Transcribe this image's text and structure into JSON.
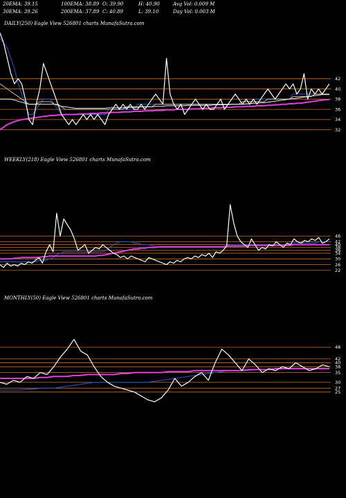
{
  "header": {
    "ema20": "20EMA: 39.15",
    "ema100": "100EMA: 38.89",
    "open": "O: 39.90",
    "high": "H: 40.90",
    "avgvol": "Avg Vol: 0.009 M",
    "ema30": "30EMA: 39.26",
    "ema200": "200EMA: 37.89",
    "close": "C: 40.89",
    "low": "L: 39.10",
    "dayvol": "Day Vol: 0.003 M"
  },
  "colors": {
    "background": "#000000",
    "price": "#ffffff",
    "gridline": "#c87533",
    "ema_blue": "#1e5bd8",
    "ema_magenta": "#e040e0",
    "ema_tan": "#d8b890",
    "ema_white": "#f0f0f0"
  },
  "chart_data": [
    {
      "type": "line",
      "title": "DAILY(250) Eagle   View  526801 charts MunafaSutra.com",
      "yticks": [
        42,
        40,
        38,
        36,
        34,
        32
      ],
      "ylim": [
        31,
        52
      ],
      "series": [
        {
          "name": "price",
          "color": "#ffffff",
          "values": [
            51,
            49,
            46,
            43,
            41,
            42,
            41,
            38,
            34,
            33,
            37,
            40,
            45,
            43,
            41,
            39,
            37,
            35,
            34,
            33,
            34,
            33,
            34,
            35,
            34,
            35,
            34,
            35,
            34,
            33,
            35,
            36,
            37,
            36,
            37,
            36,
            37,
            36,
            36,
            37,
            36,
            37,
            38,
            39,
            38,
            37,
            46,
            39,
            37,
            36,
            37,
            35,
            36,
            37,
            38,
            37,
            36,
            37,
            36,
            36,
            37,
            38,
            36,
            37,
            38,
            39,
            38,
            37,
            38,
            37,
            38,
            37,
            38,
            39,
            40,
            39,
            38,
            39,
            40,
            41,
            40,
            41,
            39,
            40,
            43,
            38,
            40,
            39,
            40,
            39,
            40,
            41
          ]
        },
        {
          "name": "EMA20",
          "color": "#1e5bd8",
          "values": [
            50,
            49,
            48,
            46,
            44,
            41,
            39,
            37,
            35,
            35,
            36,
            37,
            38,
            38,
            38,
            37,
            36,
            35,
            35,
            35,
            35,
            35,
            35,
            35,
            35,
            35,
            35,
            35,
            35,
            35,
            36,
            36,
            36,
            36,
            36,
            36,
            36,
            36,
            37,
            37,
            37,
            37,
            37,
            37,
            37,
            37,
            37,
            37,
            37,
            37,
            37,
            37,
            37,
            37,
            37,
            37,
            37,
            37,
            37,
            37,
            37,
            37,
            37,
            37,
            37,
            37,
            37,
            37,
            37,
            37,
            38,
            38,
            38,
            38,
            38,
            38,
            38,
            38,
            38,
            38,
            38,
            39,
            39,
            39,
            39,
            39,
            39,
            39,
            39,
            39,
            39,
            39
          ]
        },
        {
          "name": "EMA30",
          "color": "#d8b890",
          "values": [
            41,
            40.5,
            40,
            39.5,
            39,
            38.5,
            38,
            37.5,
            37,
            37,
            37,
            37.5,
            37.5,
            37.5,
            37.5,
            37,
            37,
            36.5,
            36,
            36,
            36,
            36,
            36,
            36,
            36,
            36,
            36,
            36,
            36,
            36,
            36,
            36,
            36,
            36,
            36,
            36.5,
            36.5,
            36.5,
            36.5,
            36.5,
            36.5,
            36.5,
            36.5,
            37,
            37,
            37,
            37,
            37,
            37,
            37,
            37,
            37,
            37,
            37,
            37,
            37,
            37,
            37,
            37,
            37,
            37,
            37,
            37,
            37,
            37,
            37,
            37,
            37.5,
            37.5,
            37.5,
            37.5,
            37.5,
            37.5,
            37.5,
            38,
            38,
            38,
            38,
            38,
            38,
            38,
            38.5,
            38.5,
            38.5,
            38.5,
            38.5,
            38.5,
            39,
            39,
            39,
            39,
            39
          ]
        },
        {
          "name": "EMA100",
          "color": "#f0f0f0",
          "values": [
            38,
            38,
            38,
            38,
            37.8,
            37.6,
            37.4,
            37.2,
            37,
            37,
            37,
            37,
            37,
            37,
            37,
            37,
            36.8,
            36.6,
            36.5,
            36.4,
            36.3,
            36.2,
            36.2,
            36.2,
            36.2,
            36.2,
            36.2,
            36.2,
            36.2,
            36.2,
            36.3,
            36.3,
            36.3,
            36.3,
            36.3,
            36.4,
            36.4,
            36.4,
            36.4,
            36.5,
            36.5,
            36.5,
            36.5,
            36.6,
            36.6,
            36.6,
            36.7,
            36.7,
            36.7,
            36.7,
            36.7,
            36.7,
            36.8,
            36.8,
            36.8,
            36.8,
            36.8,
            36.8,
            36.8,
            36.9,
            36.9,
            36.9,
            36.9,
            36.9,
            37,
            37,
            37,
            37,
            37.1,
            37.1,
            37.2,
            37.2,
            37.3,
            37.3,
            37.4,
            37.5,
            37.6,
            37.7,
            37.8,
            37.9,
            38,
            38.1,
            38.2,
            38.3,
            38.4,
            38.5,
            38.6,
            38.7,
            38.8,
            38.9,
            38.9,
            38.9
          ]
        },
        {
          "name": "EMA200",
          "color": "#e040e0",
          "values": [
            32,
            32.5,
            33,
            33.3,
            33.6,
            33.8,
            34,
            34.1,
            34.2,
            34.3,
            34.4,
            34.5,
            34.6,
            34.7,
            34.8,
            34.8,
            34.9,
            34.9,
            35,
            35,
            35,
            35,
            35.1,
            35.1,
            35.1,
            35.2,
            35.2,
            35.2,
            35.3,
            35.3,
            35.3,
            35.4,
            35.4,
            35.4,
            35.5,
            35.5,
            35.5,
            35.6,
            35.6,
            35.6,
            35.7,
            35.7,
            35.7,
            35.8,
            35.8,
            35.8,
            35.9,
            35.9,
            35.9,
            36,
            36,
            36,
            36,
            36.1,
            36.1,
            36.1,
            36.2,
            36.2,
            36.2,
            36.3,
            36.3,
            36.3,
            36.4,
            36.4,
            36.4,
            36.5,
            36.5,
            36.5,
            36.6,
            36.6,
            36.6,
            36.7,
            36.7,
            36.7,
            36.8,
            36.8,
            36.9,
            36.9,
            37,
            37,
            37.1,
            37.1,
            37.2,
            37.2,
            37.3,
            37.4,
            37.5,
            37.6,
            37.7,
            37.8,
            37.9,
            37.9
          ]
        }
      ]
    },
    {
      "type": "line",
      "title": "WEEKLY(218) Eagle   View  526801 charts MunafaSutra.com",
      "yticks": [
        46,
        42,
        40,
        38,
        36,
        34,
        30,
        26,
        22
      ],
      "ylim": [
        20,
        95
      ],
      "series": [
        {
          "name": "price",
          "color": "#ffffff",
          "values": [
            26,
            24,
            27,
            25,
            26,
            25,
            27,
            26,
            28,
            27,
            29,
            31,
            27,
            35,
            40,
            35,
            62,
            46,
            58,
            54,
            50,
            44,
            36,
            38,
            40,
            34,
            36,
            38,
            37,
            40,
            38,
            36,
            34,
            33,
            31,
            32,
            30,
            32,
            31,
            30,
            29,
            28,
            31,
            30,
            29,
            28,
            27,
            26,
            28,
            27,
            29,
            28,
            30,
            31,
            30,
            32,
            31,
            33,
            32,
            34,
            31,
            35,
            34,
            36,
            39,
            68,
            55,
            46,
            42,
            40,
            38,
            44,
            40,
            36,
            38,
            37,
            40,
            39,
            42,
            40,
            38,
            41,
            40,
            44,
            42,
            41,
            43,
            42,
            44,
            43,
            45,
            41,
            42,
            44
          ]
        },
        {
          "name": "EMA20",
          "color": "#1e5bd8",
          "values": [
            28,
            28,
            28,
            28,
            28,
            28,
            28,
            28,
            28,
            28,
            28,
            29,
            29,
            29,
            30,
            31,
            33,
            34,
            35,
            35,
            35,
            35,
            35,
            35,
            35,
            35,
            35,
            35,
            35,
            35,
            36,
            38,
            40,
            41,
            42,
            42,
            42,
            42,
            41,
            41,
            40,
            40,
            40,
            39,
            39,
            38,
            38,
            38,
            38,
            38,
            38,
            38,
            38,
            38,
            38,
            38,
            38,
            38,
            38,
            38,
            38,
            38,
            38,
            38,
            39,
            40,
            40,
            40,
            40,
            40,
            40,
            40,
            40,
            40,
            40,
            40,
            40,
            40,
            40,
            40,
            40,
            40,
            40,
            41,
            41,
            41,
            41,
            41,
            41,
            41,
            42,
            42,
            42,
            42
          ]
        },
        {
          "name": "EMA200",
          "color": "#e040e0",
          "values": [
            30,
            30,
            30,
            30,
            30.5,
            30.5,
            31,
            31,
            31,
            31,
            31,
            31,
            31.5,
            31.5,
            32,
            32,
            32,
            32,
            32,
            32,
            32,
            32,
            32,
            32,
            32,
            32,
            32,
            32,
            32.5,
            32.5,
            33,
            33.5,
            34,
            34.5,
            35,
            35.5,
            36,
            36.5,
            37,
            37,
            37.5,
            37.5,
            38,
            38,
            38,
            38.5,
            38.5,
            38.5,
            38.5,
            38.5,
            38.5,
            38.5,
            38.5,
            38.5,
            38.5,
            38.5,
            38.5,
            38.5,
            38.5,
            38.5,
            38.5,
            38.5,
            38.5,
            38.5,
            39,
            39,
            39,
            39,
            39,
            39,
            39.5,
            39.5,
            39.5,
            39.5,
            39.5,
            39.5,
            39.5,
            39.5,
            39.5,
            39.5,
            39.5,
            39.5,
            39.5,
            40,
            40,
            40,
            40,
            40,
            40,
            40,
            40,
            40,
            40,
            40
          ]
        }
      ]
    },
    {
      "type": "line",
      "title": "MONTHLY(50) Eagle   View  526801 charts MunafaSutra.com",
      "yticks": [
        48,
        42,
        40,
        38,
        35,
        30,
        27,
        25
      ],
      "ylim": [
        15,
        70
      ],
      "series": [
        {
          "name": "price",
          "color": "#ffffff",
          "values": [
            30,
            29,
            31,
            30,
            33,
            32,
            35,
            34,
            38,
            43,
            47,
            52,
            46,
            44,
            38,
            33,
            30,
            28,
            27,
            26,
            25,
            23,
            21,
            20,
            22,
            26,
            32,
            28,
            30,
            33,
            35,
            31,
            40,
            47,
            44,
            40,
            36,
            42,
            39,
            35,
            37,
            36,
            38,
            37,
            40,
            38,
            36,
            37,
            39,
            38
          ]
        },
        {
          "name": "EMA20",
          "color": "#1e5bd8",
          "values": [
            26,
            26,
            26,
            26,
            26.5,
            26.5,
            27,
            27,
            27,
            27.5,
            28,
            28.5,
            29,
            29.5,
            30,
            30,
            30,
            30,
            30,
            30,
            30,
            30,
            30,
            30.5,
            31,
            31.5,
            32,
            32.5,
            33,
            33.5,
            34,
            34.5,
            35,
            35.5,
            36,
            36,
            36,
            36,
            36.5,
            36.5,
            36.5,
            37,
            37,
            37,
            37,
            37,
            37,
            37,
            37,
            37
          ]
        },
        {
          "name": "EMA100",
          "color": "#e040e0",
          "values": [
            32,
            32,
            32,
            32,
            32,
            32,
            32.5,
            32.5,
            33,
            33,
            33,
            33.5,
            33.5,
            34,
            34,
            34,
            34,
            34,
            34.5,
            34.5,
            35,
            35,
            35,
            35,
            35,
            35.5,
            35.5,
            35.5,
            35.5,
            36,
            36,
            36,
            36,
            36,
            36,
            36,
            36,
            36.5,
            36.5,
            36.5,
            36.5,
            37,
            37,
            37,
            37,
            37,
            37,
            37,
            37,
            37
          ]
        }
      ]
    }
  ]
}
